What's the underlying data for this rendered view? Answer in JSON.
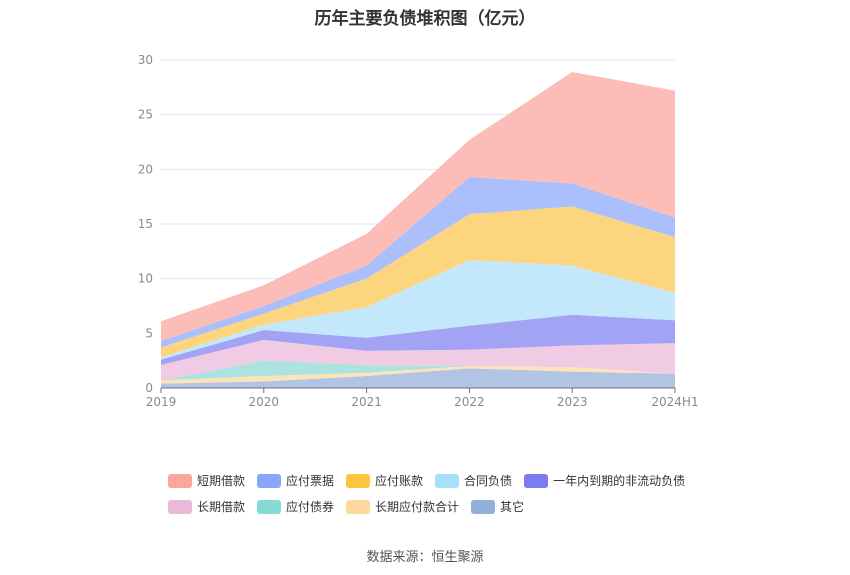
{
  "chart_data": {
    "type": "area",
    "stacked": true,
    "title": "历年主要负债堆积图（亿元）",
    "categories": [
      "2019",
      "2020",
      "2021",
      "2022",
      "2023",
      "2024H1"
    ],
    "ylim": [
      0,
      30
    ],
    "yticks": [
      "0",
      "5",
      "10",
      "15",
      "20",
      "25",
      "30"
    ],
    "grid": true,
    "legend_position": "bottom",
    "series": [
      {
        "name": "其它",
        "color": "#b1c4e4",
        "values": [
          0.4,
          0.6,
          1.1,
          1.8,
          1.5,
          1.3
        ]
      },
      {
        "name": "长期应付款合计",
        "color": "#fde3b8",
        "values": [
          0.3,
          0.5,
          0.3,
          0.2,
          0.4,
          0.0
        ]
      },
      {
        "name": "应付债券",
        "color": "#ace3e0",
        "values": [
          0.0,
          1.4,
          0.7,
          0.0,
          0.0,
          0.0
        ]
      },
      {
        "name": "长期借款",
        "color": "#f1cbe3",
        "values": [
          1.4,
          1.9,
          1.3,
          1.5,
          2.0,
          2.8
        ]
      },
      {
        "name": "一年内到期的非流动负债",
        "color": "#a3a3f6",
        "values": [
          0.5,
          0.9,
          1.2,
          2.2,
          2.8,
          2.1
        ]
      },
      {
        "name": "合同负债",
        "color": "#c3e8fb",
        "values": [
          0.2,
          0.5,
          2.8,
          6.0,
          4.5,
          2.5
        ]
      },
      {
        "name": "应付账款",
        "color": "#fed57f",
        "values": [
          0.9,
          1.0,
          2.6,
          4.2,
          5.4,
          5.1
        ]
      },
      {
        "name": "应付票据",
        "color": "#aabffb",
        "values": [
          0.6,
          0.7,
          1.2,
          3.4,
          2.1,
          1.8
        ]
      },
      {
        "name": "短期借款",
        "color": "#fcbdb8",
        "values": [
          1.8,
          1.9,
          2.9,
          3.4,
          10.2,
          11.6
        ]
      }
    ]
  },
  "legend": {
    "row1": [
      {
        "label": "短期借款",
        "color": "#fba79e"
      },
      {
        "label": "应付票据",
        "color": "#88a7fb"
      },
      {
        "label": "应付账款",
        "color": "#fdc43f"
      },
      {
        "label": "合同负债",
        "color": "#a7e0fa"
      },
      {
        "label": "一年内到期的非流动负债",
        "color": "#7b7bf2"
      }
    ],
    "row2": [
      {
        "label": "长期借款",
        "color": "#ebb8da"
      },
      {
        "label": "应付债券",
        "color": "#86dad6"
      },
      {
        "label": "长期应付款合计",
        "color": "#fdd9a0"
      },
      {
        "label": "其它",
        "color": "#92afd8"
      }
    ]
  },
  "source": "数据来源：恒生聚源"
}
